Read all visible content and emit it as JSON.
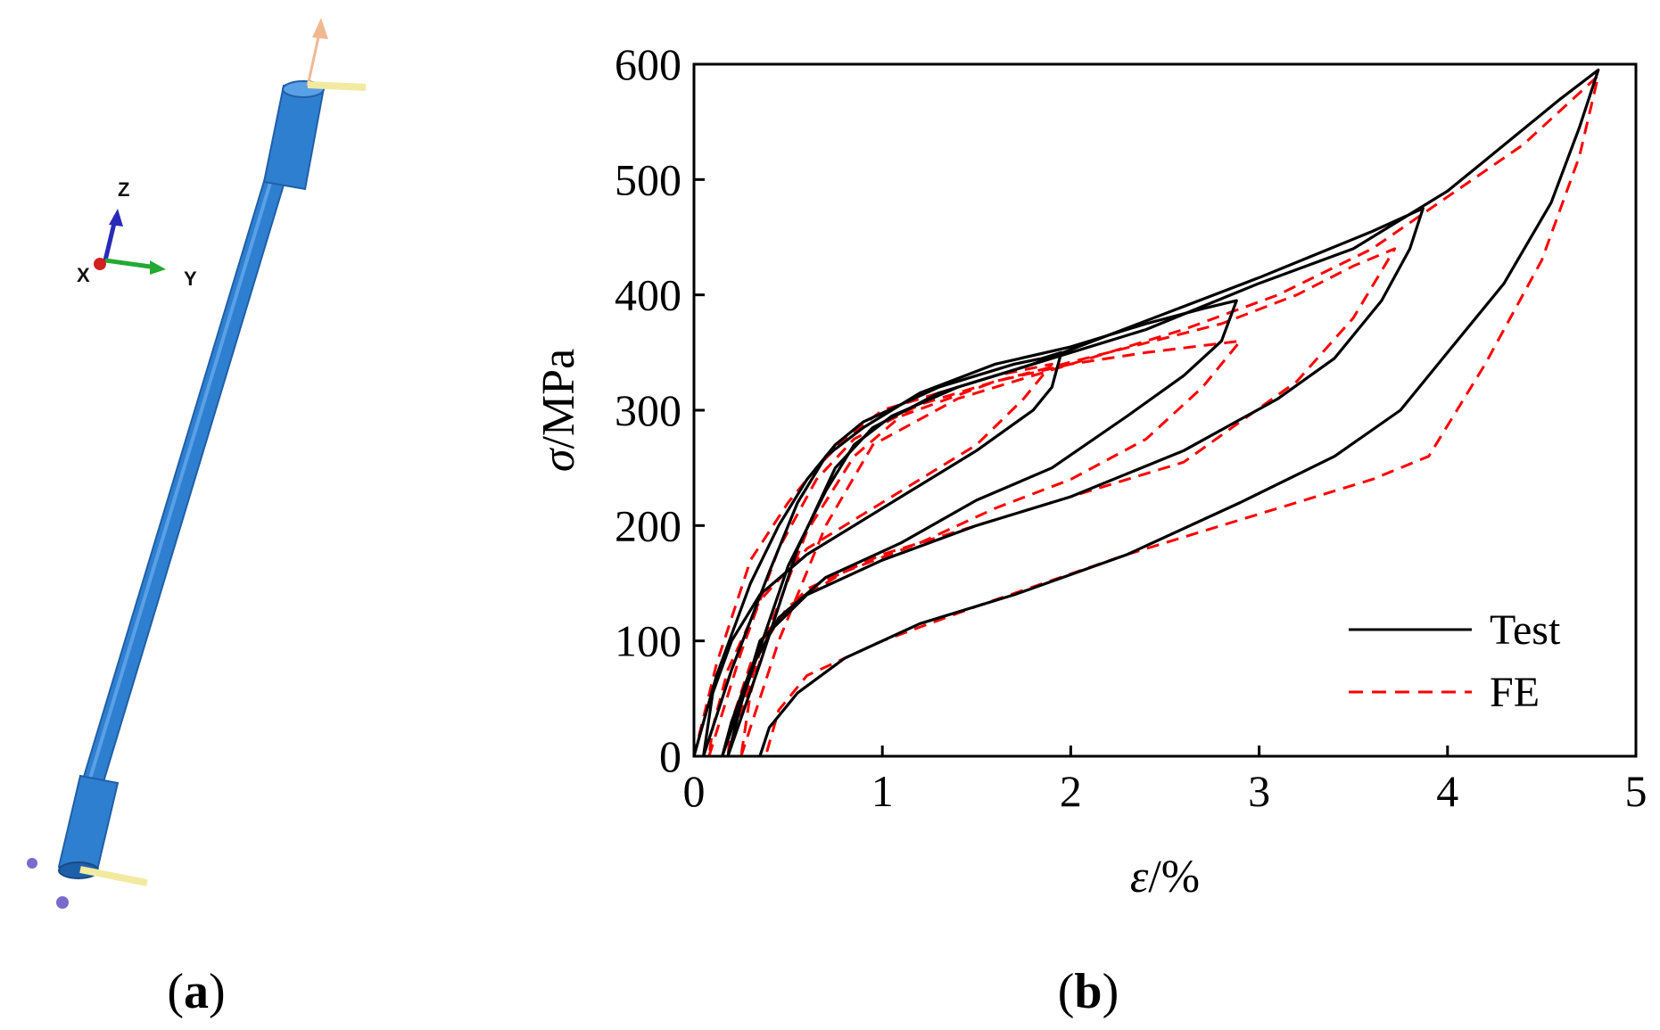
{
  "panel_a": {
    "label_open": "(",
    "label_letter": "a",
    "label_close": ")",
    "axes": {
      "z": "Z",
      "y": "Y",
      "x": "X"
    },
    "colors": {
      "rod": "#2f7fd0",
      "rod_dark": "#1f5fa8",
      "rod_light": "#5aa0e6"
    }
  },
  "panel_b": {
    "label_open": "(",
    "label_letter": "b",
    "label_close": ")"
  },
  "chart_data": {
    "type": "line",
    "xlabel_symbol": "ε",
    "xlabel_unit": "/%",
    "ylabel_symbol": "σ",
    "ylabel_unit": "/MPa",
    "xlim": [
      0,
      5
    ],
    "ylim": [
      0,
      600
    ],
    "xticks": [
      0,
      1,
      2,
      3,
      4,
      5
    ],
    "yticks": [
      0,
      100,
      200,
      300,
      400,
      500,
      600
    ],
    "legend_position": "bottom-right",
    "series": [
      {
        "name": "Test",
        "style": "solid",
        "color": "#000000",
        "loops": [
          [
            [
              0,
              0
            ],
            [
              0.12,
              70
            ],
            [
              0.3,
              150
            ],
            [
              0.45,
              200
            ],
            [
              0.6,
              240
            ],
            [
              0.75,
              270
            ],
            [
              0.9,
              290
            ],
            [
              1.1,
              305
            ],
            [
              1.3,
              320
            ],
            [
              1.5,
              330
            ],
            [
              1.7,
              340
            ],
            [
              1.85,
              345
            ],
            [
              1.95,
              350
            ],
            [
              1.9,
              320
            ],
            [
              1.8,
              300
            ],
            [
              1.5,
              265
            ],
            [
              1.2,
              235
            ],
            [
              0.9,
              205
            ],
            [
              0.6,
              175
            ],
            [
              0.35,
              140
            ],
            [
              0.2,
              100
            ],
            [
              0.1,
              55
            ],
            [
              0.05,
              0
            ]
          ],
          [
            [
              0.05,
              0
            ],
            [
              0.2,
              75
            ],
            [
              0.4,
              160
            ],
            [
              0.55,
              220
            ],
            [
              0.7,
              260
            ],
            [
              0.9,
              285
            ],
            [
              1.2,
              315
            ],
            [
              1.6,
              340
            ],
            [
              2.0,
              355
            ],
            [
              2.4,
              375
            ],
            [
              2.7,
              388
            ],
            [
              2.88,
              395
            ],
            [
              2.8,
              360
            ],
            [
              2.6,
              330
            ],
            [
              2.3,
              295
            ],
            [
              1.9,
              250
            ],
            [
              1.5,
              222
            ],
            [
              1.1,
              185
            ],
            [
              0.7,
              155
            ],
            [
              0.45,
              120
            ],
            [
              0.3,
              75
            ],
            [
              0.2,
              30
            ],
            [
              0.15,
              0
            ]
          ],
          [
            [
              0.15,
              0
            ],
            [
              0.3,
              70
            ],
            [
              0.5,
              165
            ],
            [
              0.7,
              230
            ],
            [
              0.85,
              270
            ],
            [
              1.05,
              295
            ],
            [
              1.4,
              320
            ],
            [
              1.8,
              340
            ],
            [
              2.2,
              365
            ],
            [
              2.6,
              390
            ],
            [
              3.0,
              415
            ],
            [
              3.3,
              435
            ],
            [
              3.6,
              455
            ],
            [
              3.87,
              475
            ],
            [
              3.8,
              440
            ],
            [
              3.65,
              395
            ],
            [
              3.4,
              345
            ],
            [
              3.1,
              310
            ],
            [
              2.6,
              265
            ],
            [
              2.0,
              225
            ],
            [
              1.5,
              200
            ],
            [
              1.0,
              170
            ],
            [
              0.6,
              140
            ],
            [
              0.35,
              100
            ],
            [
              0.25,
              45
            ],
            [
              0.18,
              0
            ]
          ],
          [
            [
              0.18,
              0
            ],
            [
              0.35,
              80
            ],
            [
              0.55,
              180
            ],
            [
              0.75,
              250
            ],
            [
              0.95,
              285
            ],
            [
              1.3,
              315
            ],
            [
              1.8,
              340
            ],
            [
              2.4,
              370
            ],
            [
              3.0,
              410
            ],
            [
              3.5,
              440
            ],
            [
              3.8,
              470
            ],
            [
              4.0,
              490
            ],
            [
              4.3,
              530
            ],
            [
              4.6,
              570
            ],
            [
              4.8,
              595
            ],
            [
              4.7,
              545
            ],
            [
              4.55,
              480
            ],
            [
              4.3,
              410
            ],
            [
              4.0,
              350
            ],
            [
              3.75,
              300
            ],
            [
              3.4,
              260
            ],
            [
              2.9,
              220
            ],
            [
              2.3,
              175
            ],
            [
              1.7,
              140
            ],
            [
              1.2,
              115
            ],
            [
              0.8,
              85
            ],
            [
              0.55,
              55
            ],
            [
              0.4,
              25
            ],
            [
              0.35,
              0
            ]
          ]
        ]
      },
      {
        "name": "FE",
        "style": "dashed",
        "color": "#ff0000",
        "loops": [
          [
            [
              0,
              0
            ],
            [
              0.12,
              80
            ],
            [
              0.3,
              170
            ],
            [
              0.5,
              220
            ],
            [
              0.65,
              250
            ],
            [
              0.8,
              275
            ],
            [
              1.0,
              300
            ],
            [
              1.3,
              315
            ],
            [
              1.6,
              330
            ],
            [
              1.9,
              340
            ],
            [
              1.75,
              310
            ],
            [
              1.5,
              270
            ],
            [
              1.2,
              240
            ],
            [
              0.9,
              210
            ],
            [
              0.6,
              180
            ],
            [
              0.35,
              135
            ],
            [
              0.18,
              75
            ],
            [
              0.1,
              25
            ],
            [
              0.08,
              0
            ]
          ],
          [
            [
              0.08,
              0
            ],
            [
              0.25,
              90
            ],
            [
              0.45,
              180
            ],
            [
              0.65,
              240
            ],
            [
              0.85,
              275
            ],
            [
              1.2,
              305
            ],
            [
              1.6,
              325
            ],
            [
              2.0,
              340
            ],
            [
              2.4,
              350
            ],
            [
              2.9,
              360
            ],
            [
              2.7,
              320
            ],
            [
              2.4,
              275
            ],
            [
              2.0,
              240
            ],
            [
              1.6,
              215
            ],
            [
              1.2,
              185
            ],
            [
              0.8,
              160
            ],
            [
              0.5,
              130
            ],
            [
              0.3,
              80
            ],
            [
              0.2,
              30
            ],
            [
              0.18,
              0
            ]
          ],
          [
            [
              0.18,
              0
            ],
            [
              0.35,
              90
            ],
            [
              0.6,
              195
            ],
            [
              0.85,
              260
            ],
            [
              1.1,
              295
            ],
            [
              1.6,
              325
            ],
            [
              2.2,
              350
            ],
            [
              2.8,
              375
            ],
            [
              3.2,
              400
            ],
            [
              3.5,
              425
            ],
            [
              3.72,
              440
            ],
            [
              3.5,
              380
            ],
            [
              3.2,
              325
            ],
            [
              2.9,
              290
            ],
            [
              2.6,
              255
            ],
            [
              2.1,
              230
            ],
            [
              1.5,
              200
            ],
            [
              1.0,
              175
            ],
            [
              0.6,
              145
            ],
            [
              0.4,
              110
            ],
            [
              0.3,
              55
            ],
            [
              0.25,
              0
            ]
          ],
          [
            [
              0.25,
              0
            ],
            [
              0.45,
              100
            ],
            [
              0.7,
              200
            ],
            [
              0.95,
              270
            ],
            [
              1.4,
              310
            ],
            [
              2.0,
              340
            ],
            [
              2.6,
              370
            ],
            [
              3.1,
              400
            ],
            [
              3.6,
              440
            ],
            [
              4.0,
              485
            ],
            [
              4.4,
              530
            ],
            [
              4.8,
              590
            ],
            [
              4.7,
              520
            ],
            [
              4.5,
              430
            ],
            [
              4.2,
              340
            ],
            [
              3.9,
              260
            ],
            [
              3.6,
              240
            ],
            [
              3.0,
              210
            ],
            [
              2.3,
              175
            ],
            [
              1.5,
              130
            ],
            [
              1.0,
              100
            ],
            [
              0.6,
              70
            ],
            [
              0.45,
              40
            ],
            [
              0.38,
              0
            ]
          ]
        ]
      }
    ]
  }
}
